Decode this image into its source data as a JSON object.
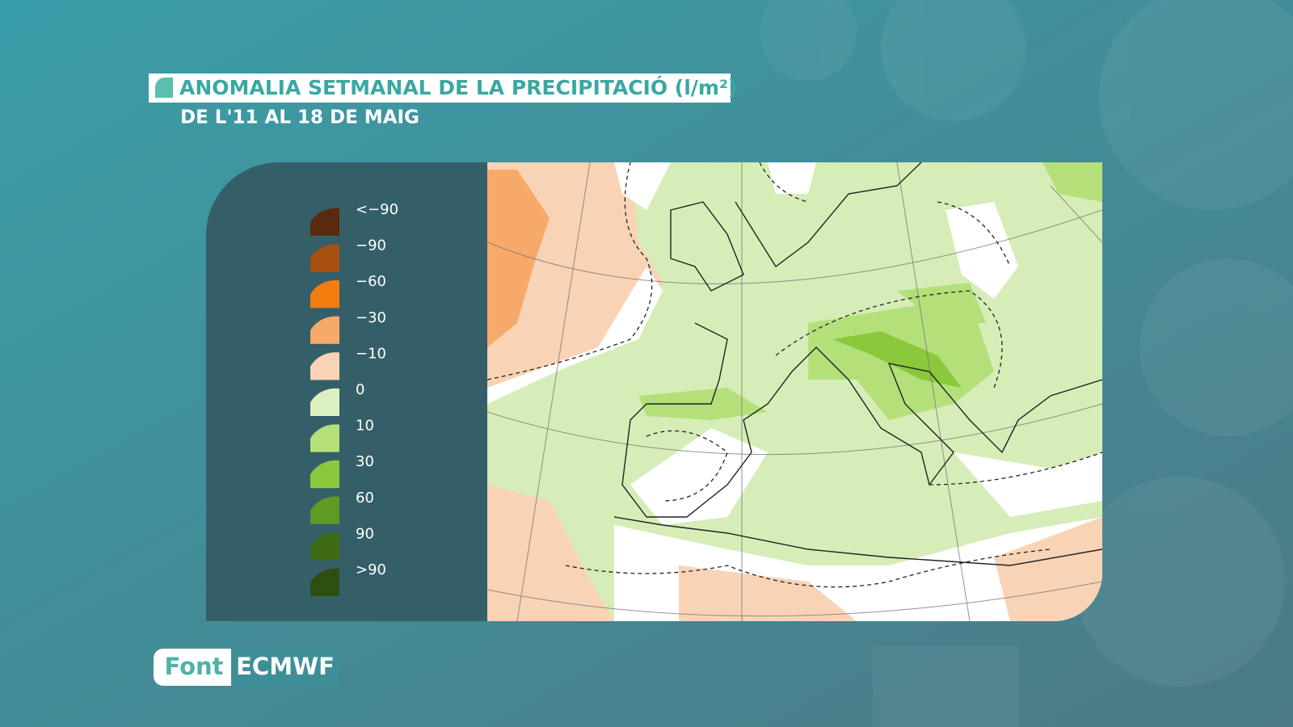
{
  "header": {
    "title": "ANOMALIA SETMANAL DE LA PRECIPITACIÓ (l/m²)",
    "subtitle": "DE L'11 AL 18 DE MAIG"
  },
  "legend": {
    "items": [
      {
        "label": "<−90",
        "color": "#5a2a0c"
      },
      {
        "label": "−90",
        "color": "#a8500f"
      },
      {
        "label": "−60",
        "color": "#f57d10"
      },
      {
        "label": "−30",
        "color": "#f7a96a"
      },
      {
        "label": "−10",
        "color": "#f9d3b5"
      },
      {
        "label": "0",
        "color": "#dbefc0"
      },
      {
        "label": "10",
        "color": "#b4e07a"
      },
      {
        "label": "30",
        "color": "#8cc83c"
      },
      {
        "label": "60",
        "color": "#5f9a22"
      },
      {
        "label": "90",
        "color": "#3f6a16"
      },
      {
        "label": ">90",
        "color": "#2f4f10"
      }
    ]
  },
  "source": {
    "label": "Font",
    "name": "ECMWF"
  }
}
